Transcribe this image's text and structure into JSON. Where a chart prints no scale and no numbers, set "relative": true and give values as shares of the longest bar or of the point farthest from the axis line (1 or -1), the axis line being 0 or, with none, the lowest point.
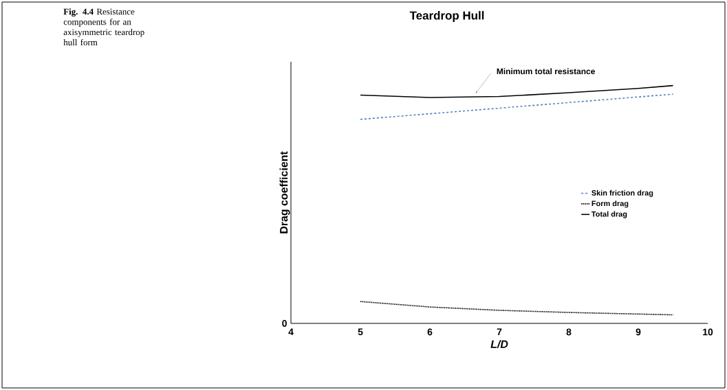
{
  "chart_data": {
    "type": "line",
    "title": "Teardrop Hull",
    "xlabel": "L/D",
    "ylabel": "Drag coefficient",
    "relative": true,
    "xlim": [
      4,
      10
    ],
    "xticks": [
      4,
      5,
      6,
      7,
      8,
      9,
      10
    ],
    "legend": "right",
    "marker": "none",
    "series": [
      {
        "name": "Skin friction drag",
        "color": "#4f81bd",
        "line_style": "dashed",
        "x": [
          5,
          9.5
        ],
        "values": [
          0.858,
          0.964
        ]
      },
      {
        "name": "Form drag",
        "color": "#000000",
        "line_style": "dotted",
        "x": [
          5,
          6,
          7,
          8,
          9.5
        ],
        "values": [
          0.092,
          0.069,
          0.055,
          0.046,
          0.036
        ]
      },
      {
        "name": "Total drag",
        "color": "#000000",
        "line_style": "solid",
        "x": [
          5,
          6,
          7,
          8,
          9,
          9.5
        ],
        "values": [
          0.96,
          0.95,
          0.954,
          0.97,
          0.988,
          1
        ]
      }
    ],
    "annotations": [
      "**Fig. 4.4** Resistance components for an axisymmetric teardrop hull form",
      "0",
      {
        "text": "Minimum total resistance",
        "x": 6.66,
        "y": 0.968
      }
    ]
  }
}
